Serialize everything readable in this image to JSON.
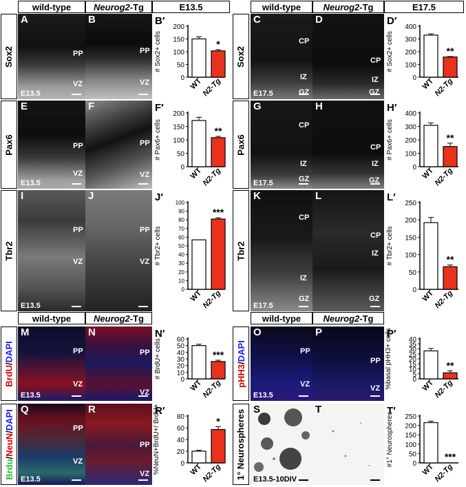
{
  "headers": {
    "wt_left": "wild-type",
    "tg_left_italic": "Neurog2",
    "tg_left_suffix": "-Tg",
    "age_left": "E13.5",
    "wt_right": "wild-type",
    "tg_right_italic": "Neurog2",
    "tg_right_suffix": "-Tg",
    "age_right": "E17.5",
    "wt_left_2": "wild-type",
    "tg_left_2_italic": "Neurog2",
    "tg_left_2_suffix": "-Tg",
    "wt_right_2": "wild-type",
    "tg_right_2_italic": "Neurog2",
    "tg_right_2_suffix": "-Tg"
  },
  "row_labels": {
    "sox2_l": "Sox2",
    "sox2_r": "Sox2",
    "pax6_l": "Pax6",
    "pax6_r": "Pax6",
    "tbr2_l": "Tbr2",
    "tbr2_r": "Tbr2",
    "brdu": "BrdU",
    "brdu_sep": "/",
    "dapi1": "DAPI",
    "phh3": "pHH3",
    "phh3_sep": "/",
    "dapi2": "DAPI",
    "brdu2": "Brdu",
    "sep1": "/",
    "neun": "NeuN",
    "sep2": "/",
    "dapi3": "DAPI",
    "neuro": "1° Neurospheres"
  },
  "panels": {
    "A": {
      "letter": "A",
      "ann": [
        "PP",
        "VZ"
      ],
      "stamp": "E13.5"
    },
    "B": {
      "letter": "B",
      "ann": [
        "PP",
        "VZ"
      ]
    },
    "C": {
      "letter": "C",
      "ann": [
        "CP",
        "IZ",
        "GZ"
      ],
      "stamp": "E17.5"
    },
    "D": {
      "letter": "D",
      "ann": [
        "CP",
        "IZ",
        "GZ"
      ]
    },
    "E": {
      "letter": "E",
      "ann": [
        "PP",
        "VZ"
      ],
      "stamp": "E13.5"
    },
    "F": {
      "letter": "F",
      "ann": [
        "PP",
        "VZ"
      ]
    },
    "G": {
      "letter": "G",
      "ann": [
        "CP",
        "IZ",
        "GZ"
      ],
      "stamp": "E17.5"
    },
    "H": {
      "letter": "H",
      "ann": [
        "CP",
        "IZ",
        "GZ"
      ]
    },
    "I": {
      "letter": "I",
      "ann": [
        "PP",
        "VZ"
      ],
      "stamp": "E13.5"
    },
    "J": {
      "letter": "J",
      "ann": [
        "PP",
        "VZ"
      ]
    },
    "K": {
      "letter": "K",
      "ann": [
        "CP",
        "IZ",
        "GZ"
      ],
      "stamp": "E17.5"
    },
    "L": {
      "letter": "L",
      "ann": [
        "CP",
        "IZ",
        "GZ"
      ]
    },
    "M": {
      "letter": "M",
      "ann": [
        "PP",
        "VZ"
      ],
      "stamp": "E13.5"
    },
    "N": {
      "letter": "N",
      "ann": [
        "PP",
        "VZ"
      ]
    },
    "O": {
      "letter": "O",
      "ann": [
        "PP",
        "VZ"
      ],
      "stamp": "E13.5"
    },
    "P": {
      "letter": "P",
      "ann": [
        "PP",
        "VZ"
      ]
    },
    "Q": {
      "letter": "Q",
      "ann": [
        "PP",
        "VZ"
      ],
      "stamp": "E13.5"
    },
    "R": {
      "letter": "R",
      "ann": [
        "PP",
        "VZ"
      ]
    },
    "S": {
      "letter": "S",
      "stamp": "E13.5-10DIV"
    },
    "T": {
      "letter": "T"
    }
  },
  "colors": {
    "wt_bar": "#ffffff",
    "tg_bar": "#e8321e",
    "axis": "#000000"
  },
  "chart_data": [
    {
      "id": "Bp",
      "letter": "B′",
      "type": "bar",
      "categories": [
        "WT",
        "N2-Tg"
      ],
      "values": [
        150,
        103
      ],
      "errors": [
        8,
        5
      ],
      "ylim": [
        0,
        200
      ],
      "ticks": [
        0,
        50,
        100,
        150,
        200
      ],
      "ylabel": "# Sox2+ cells",
      "sig": "*"
    },
    {
      "id": "Dp",
      "letter": "D′",
      "type": "bar",
      "categories": [
        "WT",
        "N2-Tg"
      ],
      "values": [
        330,
        158
      ],
      "errors": [
        10,
        4
      ],
      "ylim": [
        0,
        400
      ],
      "ticks": [
        0,
        100,
        200,
        300,
        400
      ],
      "ylabel": "# Sox2+ cells",
      "sig": "**"
    },
    {
      "id": "Fp",
      "letter": "F′",
      "type": "bar",
      "categories": [
        "WT",
        "N2-Tg"
      ],
      "values": [
        172,
        108
      ],
      "errors": [
        12,
        5
      ],
      "ylim": [
        0,
        200
      ],
      "ticks": [
        0,
        50,
        100,
        150,
        200
      ],
      "ylabel": "# Pax6+ cells",
      "sig": "**"
    },
    {
      "id": "Hp",
      "letter": "H′",
      "type": "bar",
      "categories": [
        "WT",
        "N2-Tg"
      ],
      "values": [
        308,
        150
      ],
      "errors": [
        18,
        25
      ],
      "ylim": [
        0,
        400
      ],
      "ticks": [
        0,
        100,
        200,
        300,
        400
      ],
      "ylabel": "# Pax6+ cells",
      "sig": "**"
    },
    {
      "id": "Jp",
      "letter": "J′",
      "type": "bar",
      "categories": [
        "WT",
        "N2-Tg"
      ],
      "values": [
        57,
        81
      ],
      "errors": [
        0,
        1.5
      ],
      "ylim": [
        0,
        100
      ],
      "ticks": [
        0,
        10,
        20,
        30,
        40,
        50,
        60,
        70,
        80,
        90,
        100
      ],
      "ylabel": "# Tbr2+ cells",
      "sig": "***"
    },
    {
      "id": "Lp",
      "letter": "L′",
      "type": "bar",
      "categories": [
        "WT",
        "N2-Tg"
      ],
      "values": [
        192,
        65
      ],
      "errors": [
        15,
        5
      ],
      "ylim": [
        0,
        250
      ],
      "ticks": [
        0,
        50,
        100,
        150,
        200,
        250
      ],
      "ylabel": "# Tbr2+ cells",
      "sig": "**"
    },
    {
      "id": "Np",
      "letter": "N′",
      "type": "bar",
      "categories": [
        "WT",
        "N2-Tg"
      ],
      "values": [
        50,
        26
      ],
      "errors": [
        2,
        2
      ],
      "ylim": [
        0,
        60
      ],
      "ticks": [
        0,
        10,
        20,
        30,
        40,
        50,
        60
      ],
      "ylabel": "# BrdU+ cells",
      "sig": "***"
    },
    {
      "id": "Pp",
      "letter": "P′",
      "type": "bar",
      "categories": [
        "WT",
        "N2-Tg"
      ],
      "values": [
        28,
        6
      ],
      "errors": [
        2.5,
        2
      ],
      "ylim": [
        0,
        40
      ],
      "ticks": [
        0,
        5,
        10,
        15,
        20,
        25,
        30,
        35,
        40
      ],
      "ylabel": "%basal pHH3+ cells",
      "sig": "**"
    },
    {
      "id": "Rp",
      "letter": "R′",
      "type": "bar",
      "categories": [
        "WT",
        "N2-Tg"
      ],
      "values": [
        20,
        57
      ],
      "errors": [
        1.5,
        5
      ],
      "ylim": [
        0,
        80
      ],
      "ticks": [
        0,
        20,
        40,
        60,
        80
      ],
      "ylabel": "%NeuN+BrdU+/ BrdU+",
      "sig": "*"
    },
    {
      "id": "Tp",
      "letter": "T′",
      "type": "bar",
      "categories": [
        "WT",
        "N2-Tg"
      ],
      "values": [
        215,
        0
      ],
      "errors": [
        8,
        0
      ],
      "ylim": [
        0,
        250
      ],
      "ticks": [
        0,
        50,
        100,
        150,
        200,
        250
      ],
      "ylabel": "#1° Neurospheres",
      "sig": "***"
    }
  ]
}
